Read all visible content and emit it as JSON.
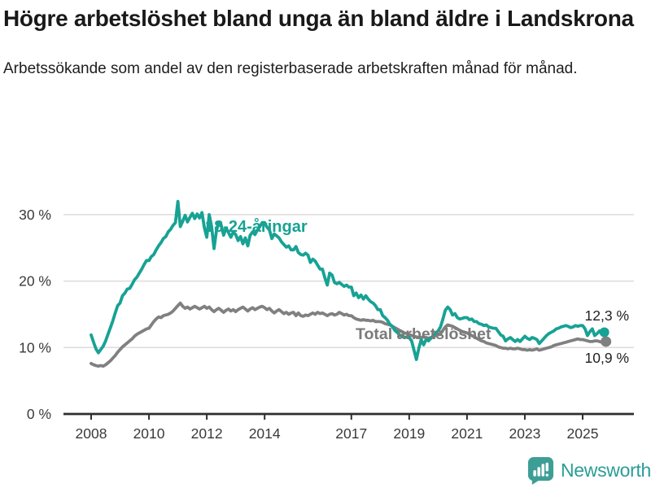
{
  "header": {
    "title": "Högre arbetslöshet bland unga än bland äldre i Landskrona",
    "subtitle": "Arbetssökande som andel av den registerbaserade arbetskraften månad för månad."
  },
  "chart_data": {
    "type": "line",
    "unit": "%",
    "frequency": "monthly",
    "x_start": "2008-01",
    "x_end": "2025-10",
    "grid": "horizontal",
    "ylim": [
      0,
      33
    ],
    "x_ticks": [
      {
        "label": "2008",
        "year": 2008
      },
      {
        "label": "2010",
        "year": 2010
      },
      {
        "label": "2012",
        "year": 2012
      },
      {
        "label": "2014",
        "year": 2014
      },
      {
        "label": "2017",
        "year": 2017
      },
      {
        "label": "2019",
        "year": 2019
      },
      {
        "label": "2021",
        "year": 2021
      },
      {
        "label": "2023",
        "year": 2023
      },
      {
        "label": "2025",
        "year": 2025
      }
    ],
    "y_ticks": [
      {
        "label": "0 %",
        "value": 0
      },
      {
        "label": "10 %",
        "value": 10
      },
      {
        "label": "20 %",
        "value": 20
      },
      {
        "label": "30 %",
        "value": 30
      }
    ],
    "series": [
      {
        "name": "18-24-åringar",
        "label": "18-24-åringar",
        "color": "#17a294",
        "end_value_label": "12,3 %",
        "end_value": 12.3,
        "values": [
          11.9,
          10.8,
          9.8,
          9.2,
          9.7,
          10.2,
          11.0,
          12.0,
          13.0,
          14.0,
          15.2,
          16.3,
          16.7,
          17.8,
          18.2,
          18.8,
          18.9,
          19.5,
          20.2,
          20.6,
          21.2,
          21.8,
          22.5,
          23.1,
          23.1,
          23.7,
          24.0,
          24.7,
          25.3,
          25.8,
          26.4,
          26.7,
          27.4,
          27.8,
          28.4,
          28.8,
          32.0,
          28.2,
          29.0,
          29.9,
          28.9,
          29.6,
          30.2,
          29.4,
          30.1,
          29.5,
          30.3,
          28.0,
          26.6,
          30.0,
          28.2,
          24.9,
          27.6,
          28.8,
          28.4,
          26.9,
          28.0,
          27.3,
          26.6,
          27.4,
          27.0,
          26.1,
          26.7,
          25.6,
          26.5,
          25.3,
          26.9,
          27.4,
          27.0,
          27.7,
          28.2,
          28.8,
          28.8,
          28.1,
          27.7,
          26.4,
          27.1,
          26.8,
          26.5,
          25.9,
          25.5,
          25.1,
          25.3,
          24.7,
          24.7,
          25.2,
          24.3,
          24.0,
          23.9,
          24.2,
          23.9,
          22.8,
          23.3,
          23.0,
          22.4,
          21.8,
          21.8,
          20.5,
          19.4,
          21.2,
          20.9,
          19.8,
          19.6,
          19.8,
          19.5,
          19.2,
          19.4,
          19.1,
          19.1,
          17.8,
          18.2,
          17.5,
          17.9,
          17.3,
          17.8,
          17.3,
          16.9,
          16.7,
          16.3,
          15.7,
          15.7,
          14.8,
          14.5,
          14.1,
          13.5,
          13.2,
          12.6,
          12.3,
          11.9,
          11.7,
          11.5,
          11.6,
          11.5,
          11.0,
          9.6,
          8.2,
          9.9,
          11.2,
          10.4,
          11.2,
          11.0,
          11.4,
          11.8,
          12.2,
          12.5,
          13.1,
          14.3,
          15.6,
          16.1,
          15.7,
          14.9,
          15.1,
          14.5,
          14.3,
          14.4,
          14.5,
          14.5,
          14.2,
          14.3,
          13.9,
          13.9,
          13.6,
          13.5,
          13.3,
          13.4,
          13.1,
          13.0,
          12.9,
          12.9,
          12.4,
          11.9,
          11.7,
          11.0,
          11.3,
          11.5,
          11.2,
          10.9,
          11.2,
          10.9,
          11.3,
          11.7,
          11.4,
          11.2,
          11.5,
          11.4,
          11.2,
          10.6,
          11.0,
          11.4,
          11.8,
          12.1,
          12.3,
          12.5,
          12.8,
          12.9,
          13.1,
          13.2,
          13.3,
          13.2,
          13.0,
          13.1,
          13.3,
          13.2,
          13.3,
          13.3,
          12.8,
          11.8,
          12.4,
          12.8,
          11.8,
          12.1,
          12.5,
          12.0,
          12.3
        ]
      },
      {
        "name": "Total arbetslöshet",
        "label": "Total arbetslöshet",
        "color": "#808080",
        "end_value_label": "10,9 %",
        "end_value": 10.9,
        "values": [
          7.6,
          7.4,
          7.3,
          7.2,
          7.3,
          7.2,
          7.4,
          7.7,
          8.0,
          8.4,
          8.8,
          9.3,
          9.7,
          10.1,
          10.4,
          10.7,
          11.0,
          11.3,
          11.7,
          12.0,
          12.2,
          12.4,
          12.6,
          12.8,
          12.9,
          13.4,
          13.9,
          14.3,
          14.6,
          14.5,
          14.8,
          14.9,
          15.0,
          15.2,
          15.5,
          15.9,
          16.3,
          16.7,
          16.2,
          15.9,
          16.1,
          15.8,
          16.0,
          16.2,
          16.0,
          15.8,
          16.0,
          16.2,
          15.9,
          16.1,
          15.7,
          15.4,
          15.7,
          15.9,
          15.6,
          15.3,
          15.6,
          15.8,
          15.5,
          15.7,
          15.4,
          15.7,
          15.9,
          16.1,
          15.8,
          15.5,
          15.8,
          16.0,
          15.7,
          15.9,
          16.1,
          16.2,
          16.0,
          15.7,
          15.9,
          15.5,
          15.2,
          15.5,
          15.7,
          15.4,
          15.1,
          15.3,
          15.0,
          15.2,
          15.3,
          14.8,
          15.2,
          14.8,
          14.7,
          14.9,
          14.8,
          15.0,
          15.2,
          15.0,
          15.3,
          15.1,
          15.2,
          15.0,
          14.8,
          15.0,
          15.1,
          14.9,
          15.0,
          15.3,
          15.1,
          14.9,
          15.0,
          14.8,
          14.8,
          14.5,
          14.3,
          14.2,
          14.1,
          14.2,
          14.1,
          14.1,
          14.0,
          14.1,
          13.9,
          13.9,
          13.9,
          13.8,
          13.6,
          13.5,
          13.4,
          13.2,
          13.0,
          12.8,
          12.6,
          12.4,
          12.2,
          12.1,
          12.0,
          11.8,
          11.7,
          11.6,
          11.5,
          11.5,
          11.6,
          11.5,
          11.4,
          11.5,
          11.6,
          11.8,
          11.9,
          12.1,
          12.6,
          13.1,
          13.4,
          13.3,
          13.2,
          13.0,
          12.8,
          12.6,
          12.4,
          12.3,
          12.2,
          12.0,
          11.8,
          11.6,
          11.4,
          11.2,
          11.0,
          10.9,
          10.7,
          10.6,
          10.5,
          10.4,
          10.3,
          10.1,
          10.0,
          9.9,
          9.9,
          9.8,
          9.9,
          9.8,
          9.8,
          9.9,
          9.8,
          9.7,
          9.7,
          9.6,
          9.7,
          9.6,
          9.7,
          9.8,
          9.6,
          9.7,
          9.8,
          9.9,
          10.0,
          10.1,
          10.3,
          10.4,
          10.5,
          10.6,
          10.7,
          10.8,
          10.9,
          11.0,
          11.1,
          11.2,
          11.3,
          11.2,
          11.2,
          11.1,
          11.0,
          10.9,
          10.9,
          11.0,
          11.0,
          10.9,
          10.8,
          10.9
        ]
      }
    ]
  },
  "footer": {
    "brand": "Newsworthy",
    "logo_icon": "bar-chart-speech-bubble-icon"
  },
  "colors": {
    "young_line": "#17a294",
    "total_line": "#808080",
    "grid": "#dcdcdc",
    "axis": "#2e2e2e",
    "tick_text": "#3a3a3a",
    "value_text": "#1f1f1f",
    "brand_teal": "#2a9d96",
    "background": "#ffffff"
  }
}
